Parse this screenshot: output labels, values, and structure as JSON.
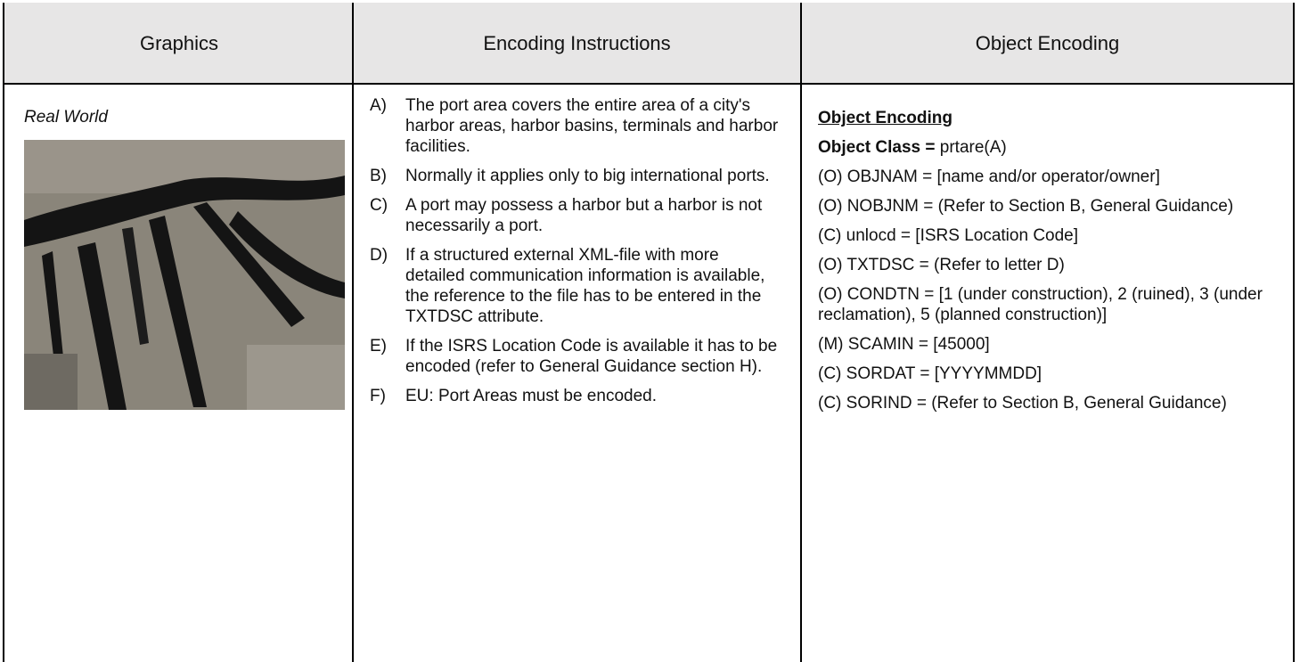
{
  "table": {
    "headers": [
      "Graphics",
      "Encoding Instructions",
      "Object Encoding"
    ],
    "graphics": {
      "caption": "Real World"
    },
    "instructions": [
      {
        "letter": "A)",
        "text": "The port area covers the entire area of a city's harbor areas, harbor basins, terminals and harbor facilities."
      },
      {
        "letter": "B)",
        "text": "Normally it applies only to big international ports."
      },
      {
        "letter": "C)",
        "text": "A port may possess a harbor but a harbor is not necessarily a port."
      },
      {
        "letter": "D)",
        "text": "If a structured external XML-file with more detailed communication information is available, the reference to the file has to be entered in the TXTDSC attribute."
      },
      {
        "letter": "E)",
        "text": "If the ISRS Location Code is available it has to be encoded (refer to General Guidance section H)."
      },
      {
        "letter": "F)",
        "text": "EU: Port Areas must be encoded."
      }
    ],
    "encoding": {
      "heading": "Object Encoding",
      "object_class_label": "Object Class =",
      "object_class_value": "prtare(A)",
      "attributes": [
        "(O) OBJNAM = [name and/or operator/owner]",
        "(O) NOBJNM = (Refer to Section B, General Guidance)",
        "(C) unlocd = [ISRS Location Code]",
        "(O) TXTDSC = (Refer to letter D)",
        "(O) CONDTN = [1 (under construction), 2 (ruined), 3 (under reclamation), 5 (planned construction)]",
        "(M) SCAMIN = [45000]",
        "(C) SORDAT = [YYYYMMDD]",
        "(C) SORIND = (Refer to Section B, General Guidance)"
      ]
    }
  }
}
